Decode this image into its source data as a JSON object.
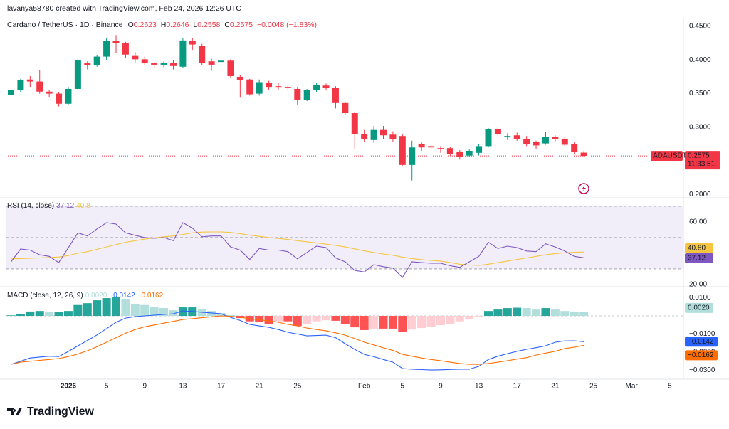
{
  "header": {
    "credit": "lavanya58780 created with TradingView.com, Feb 24, 2026 12:26 UTC",
    "symbol": "Cardano / TetherUS · 1D · Binance",
    "labels": [
      "O",
      "H",
      "L",
      "C"
    ],
    "change": "−0.0048 (−1.83%)"
  },
  "footer": {
    "logo": "TradingView"
  },
  "chart_data": [
    {
      "type": "candlestick",
      "symbol_tag": "ADAUSDT",
      "countdown": "11:33:51",
      "categories": [
        null,
        null,
        null,
        null,
        null,
        null,
        "2026",
        null,
        null,
        null,
        "5",
        null,
        null,
        null,
        "9",
        null,
        null,
        null,
        "13",
        null,
        null,
        null,
        "17",
        null,
        null,
        null,
        "21",
        null,
        null,
        null,
        "25",
        null,
        null,
        null,
        null,
        null,
        null,
        "Feb",
        null,
        null,
        null,
        "5",
        null,
        null,
        null,
        "9",
        null,
        null,
        null,
        "13",
        null,
        null,
        null,
        "17",
        null,
        null,
        null,
        "21",
        null,
        null,
        null,
        "25",
        null,
        null,
        null,
        "Mar",
        null,
        null,
        null,
        "5"
      ],
      "open": [
        0.348,
        0.355,
        0.371,
        0.368,
        0.353,
        0.35,
        0.335,
        0.357,
        0.395,
        0.392,
        0.405,
        0.428,
        0.425,
        0.406,
        0.401,
        0.395,
        0.393,
        0.395,
        0.39,
        0.428,
        0.421,
        0.398,
        0.397,
        0.399,
        0.375,
        0.371,
        0.35,
        0.366,
        0.361,
        0.36,
        0.357,
        0.341,
        0.355,
        0.362,
        0.359,
        0.336,
        0.321,
        0.29,
        0.281,
        0.296,
        0.289,
        0.287,
        0.244,
        0.275,
        0.272,
        0.269,
        0.269,
        0.264,
        0.258,
        0.262,
        0.272,
        0.297,
        0.285,
        0.288,
        0.283,
        0.278,
        0.276,
        0.286,
        0.283,
        0.275,
        0.2623,
        null,
        null,
        null,
        null,
        null,
        null,
        null,
        null,
        null
      ],
      "high": [
        0.36,
        0.372,
        0.376,
        0.385,
        0.356,
        0.352,
        0.36,
        0.402,
        0.398,
        0.407,
        0.432,
        0.437,
        0.427,
        0.412,
        0.405,
        0.397,
        0.398,
        0.4,
        0.432,
        0.433,
        0.424,
        0.402,
        0.404,
        0.401,
        0.378,
        0.372,
        0.371,
        0.369,
        0.366,
        0.363,
        0.36,
        0.357,
        0.366,
        0.365,
        0.361,
        0.338,
        0.323,
        0.296,
        0.302,
        0.302,
        0.294,
        0.29,
        0.28,
        0.278,
        0.275,
        0.272,
        0.271,
        0.266,
        0.267,
        0.275,
        0.299,
        0.302,
        0.291,
        0.292,
        0.287,
        0.28,
        0.293,
        0.288,
        0.285,
        0.278,
        0.2646,
        null,
        null,
        null,
        null,
        null,
        null,
        null,
        null,
        null
      ],
      "low": [
        0.345,
        0.352,
        0.36,
        0.35,
        0.345,
        0.331,
        0.334,
        0.355,
        0.386,
        0.39,
        0.4,
        0.41,
        0.403,
        0.395,
        0.392,
        0.388,
        0.389,
        0.386,
        0.388,
        0.415,
        0.392,
        0.384,
        0.391,
        0.373,
        0.344,
        0.347,
        0.347,
        0.356,
        0.356,
        0.355,
        0.333,
        0.339,
        0.352,
        0.355,
        0.328,
        0.318,
        0.268,
        0.278,
        0.277,
        0.283,
        0.278,
        0.243,
        0.221,
        0.265,
        0.266,
        0.262,
        0.258,
        0.252,
        0.256,
        0.258,
        0.27,
        0.285,
        0.281,
        0.28,
        0.272,
        0.268,
        0.274,
        0.279,
        0.272,
        0.26,
        0.2558,
        null,
        null,
        null,
        null,
        null,
        null,
        null,
        null,
        null
      ],
      "close": [
        0.355,
        0.37,
        0.368,
        0.353,
        0.35,
        0.335,
        0.357,
        0.4,
        0.392,
        0.405,
        0.428,
        0.425,
        0.408,
        0.401,
        0.395,
        0.393,
        0.395,
        0.391,
        0.429,
        0.423,
        0.396,
        0.393,
        0.399,
        0.376,
        0.37,
        0.349,
        0.367,
        0.36,
        0.36,
        0.358,
        0.341,
        0.355,
        0.363,
        0.358,
        0.336,
        0.321,
        0.29,
        0.282,
        0.296,
        0.288,
        0.282,
        0.244,
        0.27,
        0.27,
        0.27,
        0.268,
        0.26,
        0.256,
        0.265,
        0.272,
        0.297,
        0.29,
        0.287,
        0.283,
        0.275,
        0.273,
        0.286,
        0.282,
        0.274,
        0.263,
        0.2575,
        null,
        null,
        null,
        null,
        null,
        null,
        null,
        null,
        null
      ],
      "up_color": "#089981",
      "down_color": "#f23645",
      "last_price_line": true,
      "ylim": [
        0.1952,
        0.4627
      ],
      "yticks": [
        {
          "value": 0.45,
          "label": "0.4500"
        },
        {
          "value": 0.4,
          "label": "0.4000"
        },
        {
          "value": 0.35,
          "label": "0.3500"
        },
        {
          "value": 0.3,
          "label": "0.3000"
        },
        {
          "value": 0.2,
          "label": "0.2000"
        }
      ]
    },
    {
      "type": "line",
      "title": "RSI (14, close)",
      "series": [
        {
          "color": "#7e57c2",
          "values": [
            34.5,
            42.7,
            42,
            39,
            38,
            34,
            43.5,
            53,
            51,
            55.5,
            59.5,
            58.6,
            53,
            51.4,
            50,
            49.5,
            50,
            48,
            59.5,
            56,
            50.5,
            51,
            51,
            44,
            42,
            36,
            43,
            42,
            42,
            41,
            36.4,
            40.5,
            44.5,
            43.6,
            37,
            34.5,
            29,
            28,
            32.7,
            31.4,
            30.5,
            24.5,
            34.5,
            34,
            33.6,
            33.6,
            32,
            31,
            34.5,
            38,
            47,
            43,
            44.5,
            43.6,
            41.4,
            41,
            46,
            44,
            41.4,
            38,
            37.12,
            null,
            null,
            null,
            null,
            null,
            null,
            null,
            null,
            null
          ],
          "last_label": "37.12",
          "tag_order": 1
        },
        {
          "color": "#f5c542",
          "values": [
            36.4,
            36.6,
            36.8,
            37.0,
            37.3,
            37.6,
            38.5,
            40,
            41,
            42.5,
            44,
            45.5,
            47,
            48,
            49,
            49.8,
            50.5,
            51,
            52,
            53,
            53.5,
            53.6,
            53.6,
            53.3,
            52.5,
            51.5,
            50.8,
            50,
            49.4,
            48.8,
            48,
            47.3,
            46.6,
            45.8,
            45,
            44,
            42.8,
            41.5,
            40.5,
            39.5,
            38.7,
            37.5,
            36.6,
            35.9,
            35.4,
            35,
            34,
            33,
            32.5,
            32.3,
            33,
            34,
            35,
            36,
            37,
            38,
            39,
            39.8,
            40.3,
            40.6,
            40.8,
            null,
            null,
            null,
            null,
            null,
            null,
            null,
            null,
            null
          ],
          "last_label": "40.80",
          "tag_order": 0
        }
      ],
      "band": [
        30,
        70
      ],
      "band_color": "rgba(126,87,194,0.1)",
      "levels": [
        70,
        50,
        30
      ],
      "ylim": [
        18.6,
        73.6
      ],
      "yticks": [
        {
          "value": 60,
          "label": "60.00"
        },
        {
          "value": 20,
          "label": "20.00"
        }
      ]
    },
    {
      "type": "macd",
      "title": "MACD (close, 12, 26, 9)",
      "zero_line": true,
      "histogram": {
        "values": [
          0.0003,
          0.0012,
          0.0024,
          0.0027,
          0.002,
          0.002,
          0.0027,
          0.006,
          0.007,
          0.0086,
          0.0098,
          0.0106,
          0.0094,
          0.0067,
          0.006,
          0.0051,
          0.0043,
          0.0031,
          0.0047,
          0.0047,
          0.0035,
          0.0027,
          0.0016,
          0.0004,
          -0.0012,
          -0.003,
          -0.0035,
          -0.0043,
          -0.003,
          -0.003,
          -0.0055,
          -0.0043,
          -0.003,
          -0.0024,
          -0.0027,
          -0.0043,
          -0.0063,
          -0.0078,
          -0.007,
          -0.007,
          -0.007,
          -0.009,
          -0.0075,
          -0.0067,
          -0.0059,
          -0.0051,
          -0.0043,
          -0.003,
          -0.0016,
          -0.0004,
          0.0027,
          0.0035,
          0.0043,
          0.0045,
          0.0043,
          0.0035,
          0.0043,
          0.0035,
          0.0027,
          0.0024,
          0.002,
          null,
          null,
          null,
          null,
          null,
          null,
          null,
          null,
          null
        ],
        "last_label": "0.0020",
        "colors": {
          "up_strong": "#26a69a",
          "up_weak": "#b2dfdb",
          "down_strong": "#ff5252",
          "down_weak": "#ffcdd2"
        }
      },
      "series": [
        {
          "color": "#2962ff",
          "values": [
            -0.0267,
            -0.025,
            -0.0232,
            -0.0227,
            -0.0222,
            -0.0224,
            -0.0196,
            -0.0165,
            -0.0135,
            -0.0105,
            -0.007,
            -0.0035,
            -0.0012,
            -0.0004,
            0.0,
            0.0004,
            0.0008,
            0.0012,
            0.0027,
            0.0025,
            0.002,
            0.0016,
            0.0012,
            -0.0008,
            -0.0025,
            -0.0047,
            -0.0055,
            -0.0063,
            -0.0075,
            -0.009,
            -0.01,
            -0.011,
            -0.0108,
            -0.0106,
            -0.012,
            -0.0153,
            -0.0185,
            -0.0212,
            -0.0225,
            -0.024,
            -0.0255,
            -0.029,
            -0.0294,
            -0.0296,
            -0.0298,
            -0.0297,
            -0.0295,
            -0.0294,
            -0.0294,
            -0.0278,
            -0.024,
            -0.0222,
            -0.0208,
            -0.0195,
            -0.0184,
            -0.0175,
            -0.0165,
            -0.0145,
            -0.0138,
            -0.0137,
            -0.0142,
            null,
            null,
            null,
            null,
            null,
            null,
            null,
            null,
            null
          ],
          "last_label": "−0.0142"
        },
        {
          "color": "#ff6d00",
          "values": [
            -0.0267,
            -0.0255,
            -0.025,
            -0.0245,
            -0.024,
            -0.0235,
            -0.0224,
            -0.021,
            -0.0192,
            -0.017,
            -0.0145,
            -0.012,
            -0.0095,
            -0.0075,
            -0.006,
            -0.005,
            -0.004,
            -0.003,
            -0.002,
            -0.0015,
            -0.001,
            -0.0005,
            0.0,
            -0.0002,
            -0.0008,
            -0.0015,
            -0.0022,
            -0.0027,
            -0.0035,
            -0.0047,
            -0.0055,
            -0.0067,
            -0.0075,
            -0.0082,
            -0.0093,
            -0.0106,
            -0.0125,
            -0.0145,
            -0.016,
            -0.0176,
            -0.019,
            -0.0212,
            -0.0222,
            -0.0232,
            -0.024,
            -0.0247,
            -0.0255,
            -0.0262,
            -0.0267,
            -0.0267,
            -0.0262,
            -0.0255,
            -0.0247,
            -0.0238,
            -0.023,
            -0.0216,
            -0.0205,
            -0.0195,
            -0.018,
            -0.0172,
            -0.0162,
            null,
            null,
            null,
            null,
            null,
            null,
            null,
            null,
            null
          ],
          "last_label": "−0.0162"
        }
      ],
      "ylim": [
        -0.0337,
        0.0153
      ],
      "yticks": [
        {
          "value": 0.01,
          "label": "0.0100"
        },
        {
          "value": -0.01,
          "label": "−0.0100"
        },
        {
          "value": -0.02,
          "label": "−0.0200"
        },
        {
          "value": -0.03,
          "label": "−0.0300"
        }
      ]
    }
  ]
}
